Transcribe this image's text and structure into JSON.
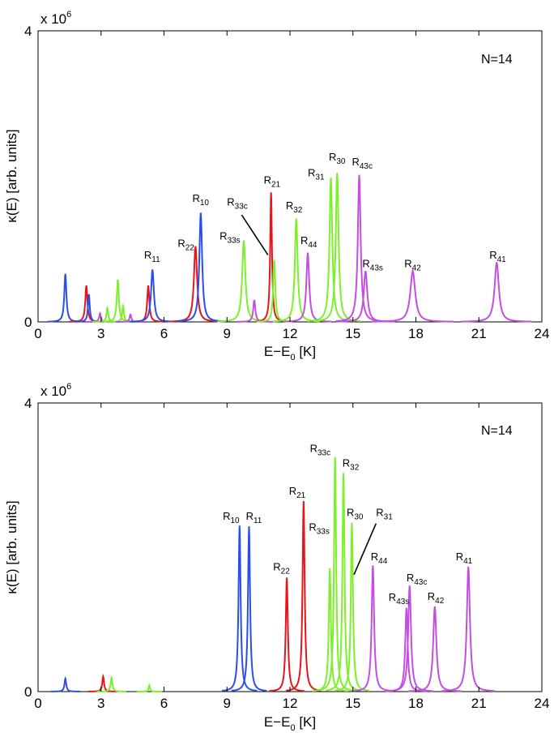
{
  "chart_data": [
    {
      "type": "line",
      "title": "",
      "xlabel_main": "E−E",
      "xlabel_sub": "0",
      "xlabel_unit": " [K]",
      "ylabel": "κ(E) [arb. units]",
      "y_exponent_base": "x 10",
      "y_exponent_power": "6",
      "xlim": [
        0,
        24
      ],
      "ylim": [
        0,
        4
      ],
      "xticks": [
        0,
        3,
        6,
        9,
        12,
        15,
        18,
        21,
        24
      ],
      "yticks": [
        0,
        4
      ],
      "annotation": "N=14",
      "colors": {
        "blue": "#2b4ee8",
        "red": "#e8141b",
        "green": "#7cf02a",
        "magenta": "#c34ee0"
      },
      "peaks": [
        {
          "x": 1.3,
          "y": 0.66,
          "w": 0.06,
          "color": "blue"
        },
        {
          "x": 2.3,
          "y": 0.5,
          "w": 0.06,
          "color": "red"
        },
        {
          "x": 2.42,
          "y": 0.38,
          "w": 0.05,
          "color": "blue"
        },
        {
          "x": 2.95,
          "y": 0.12,
          "w": 0.05,
          "color": "magenta"
        },
        {
          "x": 3.3,
          "y": 0.19,
          "w": 0.05,
          "color": "green"
        },
        {
          "x": 3.8,
          "y": 0.58,
          "w": 0.06,
          "color": "green"
        },
        {
          "x": 4.05,
          "y": 0.22,
          "w": 0.05,
          "color": "green"
        },
        {
          "x": 4.4,
          "y": 0.1,
          "w": 0.05,
          "color": "magenta"
        },
        {
          "x": 5.25,
          "y": 0.5,
          "w": 0.06,
          "color": "red"
        },
        {
          "x": 5.45,
          "y": 0.72,
          "w": 0.08,
          "color": "blue"
        },
        {
          "x": 7.5,
          "y": 1.04,
          "w": 0.09,
          "color": "red"
        },
        {
          "x": 7.75,
          "y": 1.5,
          "w": 0.08,
          "color": "blue"
        },
        {
          "x": 9.8,
          "y": 1.12,
          "w": 0.09,
          "color": "green"
        },
        {
          "x": 10.3,
          "y": 0.3,
          "w": 0.06,
          "color": "magenta"
        },
        {
          "x": 11.1,
          "y": 1.78,
          "w": 0.05,
          "color": "red"
        },
        {
          "x": 11.25,
          "y": 0.85,
          "w": 0.06,
          "color": "green"
        },
        {
          "x": 12.3,
          "y": 1.42,
          "w": 0.08,
          "color": "green"
        },
        {
          "x": 12.85,
          "y": 0.95,
          "w": 0.08,
          "color": "magenta"
        },
        {
          "x": 13.95,
          "y": 1.98,
          "w": 0.08,
          "color": "green"
        },
        {
          "x": 14.25,
          "y": 2.05,
          "w": 0.08,
          "color": "green"
        },
        {
          "x": 15.3,
          "y": 2.02,
          "w": 0.08,
          "color": "magenta"
        },
        {
          "x": 15.6,
          "y": 0.7,
          "w": 0.1,
          "color": "magenta"
        },
        {
          "x": 17.85,
          "y": 0.7,
          "w": 0.14,
          "color": "magenta"
        },
        {
          "x": 21.85,
          "y": 0.82,
          "w": 0.12,
          "color": "magenta"
        }
      ],
      "labels": [
        {
          "base": "R",
          "sub": "10",
          "x": 7.35,
          "y": 1.65
        },
        {
          "base": "R",
          "sub": "11",
          "x": 5.05,
          "y": 0.87
        },
        {
          "base": "R",
          "sub": "22",
          "x": 6.65,
          "y": 1.03
        },
        {
          "base": "R",
          "sub": "33s",
          "x": 8.65,
          "y": 1.13
        },
        {
          "base": "R",
          "sub": "33c",
          "x": 9.0,
          "y": 1.6
        },
        {
          "base": "R",
          "sub": "21",
          "x": 10.75,
          "y": 1.9
        },
        {
          "base": "R",
          "sub": "32",
          "x": 11.8,
          "y": 1.55
        },
        {
          "base": "R",
          "sub": "44",
          "x": 12.5,
          "y": 1.07
        },
        {
          "base": "R",
          "sub": "31",
          "x": 12.85,
          "y": 2.0
        },
        {
          "base": "R",
          "sub": "30",
          "x": 13.85,
          "y": 2.22
        },
        {
          "base": "R",
          "sub": "43c",
          "x": 14.95,
          "y": 2.15
        },
        {
          "base": "R",
          "sub": "43s",
          "x": 15.45,
          "y": 0.75
        },
        {
          "base": "R",
          "sub": "42",
          "x": 17.45,
          "y": 0.75
        },
        {
          "base": "R",
          "sub": "41",
          "x": 21.5,
          "y": 0.87
        }
      ],
      "leader_lines": [
        {
          "x1": 9.7,
          "y1": 1.47,
          "x2": 10.95,
          "y2": 0.92
        }
      ]
    },
    {
      "type": "line",
      "title": "",
      "xlabel_main": "E−E",
      "xlabel_sub": "0",
      "xlabel_unit": " [K]",
      "ylabel": "κ(E) [arb. units]",
      "y_exponent_base": "x 10",
      "y_exponent_power": "6",
      "xlim": [
        0,
        24
      ],
      "ylim": [
        0,
        4
      ],
      "xticks": [
        0,
        3,
        6,
        9,
        12,
        15,
        18,
        21,
        24
      ],
      "yticks": [
        0,
        4
      ],
      "annotation": "N=14",
      "colors": {
        "blue": "#2b4ee8",
        "red": "#e8141b",
        "green": "#7cf02a",
        "magenta": "#c34ee0"
      },
      "peaks": [
        {
          "x": 1.3,
          "y": 0.18,
          "w": 0.05,
          "color": "blue"
        },
        {
          "x": 3.1,
          "y": 0.21,
          "w": 0.05,
          "color": "red"
        },
        {
          "x": 3.5,
          "y": 0.19,
          "w": 0.05,
          "color": "green"
        },
        {
          "x": 5.3,
          "y": 0.09,
          "w": 0.04,
          "color": "green"
        },
        {
          "x": 9.6,
          "y": 2.3,
          "w": 0.06,
          "color": "blue"
        },
        {
          "x": 10.05,
          "y": 2.29,
          "w": 0.06,
          "color": "blue"
        },
        {
          "x": 11.85,
          "y": 1.58,
          "w": 0.06,
          "color": "red"
        },
        {
          "x": 12.65,
          "y": 2.64,
          "w": 0.06,
          "color": "red"
        },
        {
          "x": 13.9,
          "y": 1.71,
          "w": 0.06,
          "color": "green"
        },
        {
          "x": 14.15,
          "y": 3.25,
          "w": 0.06,
          "color": "green"
        },
        {
          "x": 14.55,
          "y": 3.03,
          "w": 0.06,
          "color": "green"
        },
        {
          "x": 14.95,
          "y": 2.34,
          "w": 0.06,
          "color": "green"
        },
        {
          "x": 15.95,
          "y": 1.75,
          "w": 0.07,
          "color": "magenta"
        },
        {
          "x": 17.55,
          "y": 1.16,
          "w": 0.07,
          "color": "magenta"
        },
        {
          "x": 17.7,
          "y": 1.47,
          "w": 0.08,
          "color": "magenta"
        },
        {
          "x": 18.9,
          "y": 1.18,
          "w": 0.09,
          "color": "magenta"
        },
        {
          "x": 20.5,
          "y": 1.73,
          "w": 0.09,
          "color": "magenta"
        }
      ],
      "labels": [
        {
          "base": "R",
          "sub": "10",
          "x": 8.8,
          "y": 2.38
        },
        {
          "base": "R",
          "sub": "11",
          "x": 9.9,
          "y": 2.38
        },
        {
          "base": "R",
          "sub": "22",
          "x": 11.2,
          "y": 1.68
        },
        {
          "base": "R",
          "sub": "21",
          "x": 11.95,
          "y": 2.73
        },
        {
          "base": "R",
          "sub": "33s",
          "x": 12.9,
          "y": 2.23
        },
        {
          "base": "R",
          "sub": "33c",
          "x": 12.95,
          "y": 3.32
        },
        {
          "base": "R",
          "sub": "32",
          "x": 14.5,
          "y": 3.12
        },
        {
          "base": "R",
          "sub": "30",
          "x": 14.7,
          "y": 2.43
        },
        {
          "base": "R",
          "sub": "31",
          "x": 16.1,
          "y": 2.43
        },
        {
          "base": "R",
          "sub": "44",
          "x": 15.85,
          "y": 1.82
        },
        {
          "base": "R",
          "sub": "43s",
          "x": 16.7,
          "y": 1.26
        },
        {
          "base": "R",
          "sub": "43c",
          "x": 17.55,
          "y": 1.53
        },
        {
          "base": "R",
          "sub": "42",
          "x": 18.55,
          "y": 1.27
        },
        {
          "base": "R",
          "sub": "41",
          "x": 19.9,
          "y": 1.82
        }
      ],
      "leader_lines": [
        {
          "x1": 16.1,
          "y1": 2.33,
          "x2": 15.05,
          "y2": 1.62
        }
      ]
    }
  ]
}
